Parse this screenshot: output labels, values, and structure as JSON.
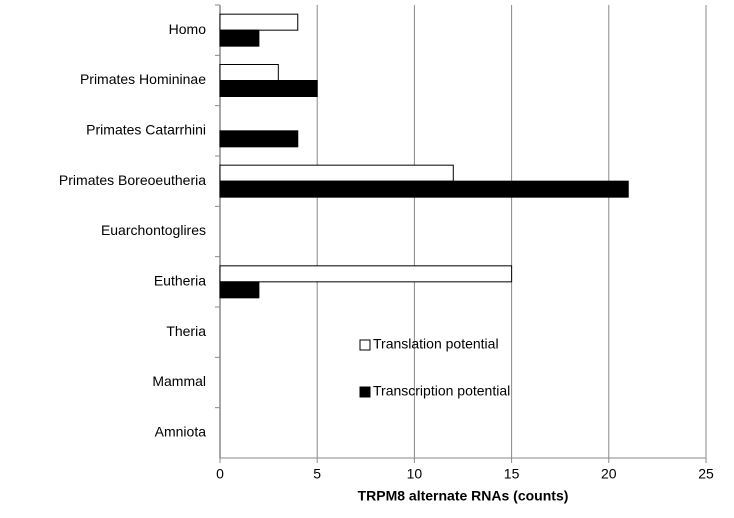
{
  "chart_data": {
    "type": "bar",
    "orientation": "horizontal",
    "x_label": "TRPM8 alternate RNAs (counts)",
    "categories": [
      "Homo",
      "Primates Homininae",
      "Primates Catarrhini",
      "Primates Boreoeutheria",
      "Euarchontoglires",
      "Eutheria",
      "Theria",
      "Mammal",
      "Amniota"
    ],
    "series": [
      {
        "name": "Translation potential",
        "color": "#ffffff",
        "values": [
          4,
          3,
          0,
          12,
          0,
          15,
          0,
          0,
          0
        ]
      },
      {
        "name": "Transcription potential",
        "color": "#000000",
        "values": [
          2,
          5,
          4,
          21,
          0,
          2,
          0,
          0,
          0
        ]
      }
    ],
    "xlim": [
      0,
      25
    ],
    "xticks": [
      0,
      5,
      10,
      15,
      20,
      25
    ],
    "grid": true,
    "legend": "center"
  }
}
